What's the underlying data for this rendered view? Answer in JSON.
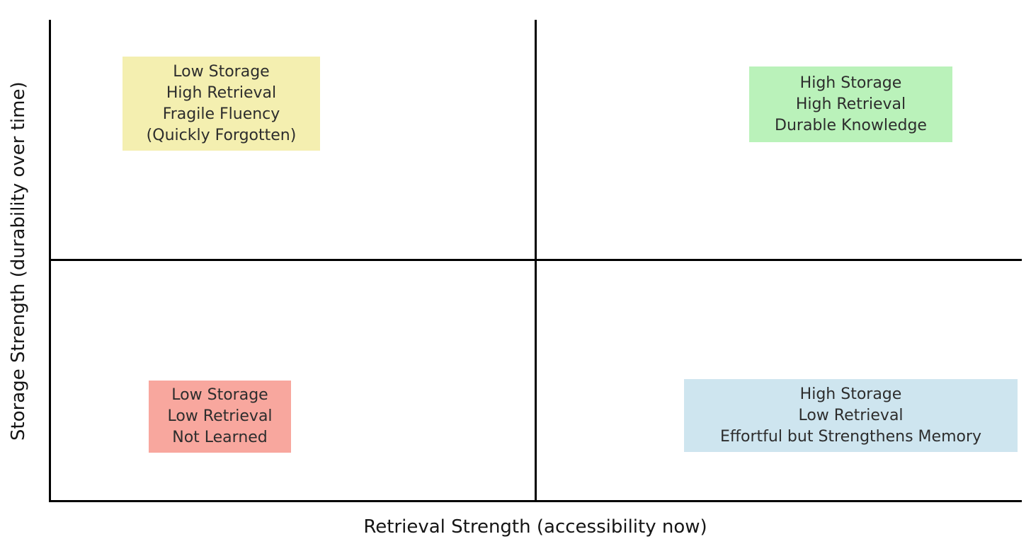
{
  "figure": {
    "background": "#ffffff",
    "line_color": "#000000",
    "label_color": "#151515",
    "box_text_color": "#2d2d2d"
  },
  "axes": {
    "x_label": "Retrieval Strength (accessibility now)",
    "y_label": "Storage Strength (durability over time)"
  },
  "quadrants": {
    "top_left": {
      "position": "top-left",
      "bg": "#F4EFB0",
      "lines": [
        "Low Storage",
        "High Retrieval",
        "Fragile Fluency",
        "(Quickly Forgotten)"
      ]
    },
    "top_right": {
      "position": "top-right",
      "bg": "#BAF2BA",
      "lines": [
        "High Storage",
        "High Retrieval",
        "Durable Knowledge"
      ]
    },
    "bottom_left": {
      "position": "bottom-left",
      "bg": "#F8A79E",
      "lines": [
        "Low Storage",
        "Low Retrieval",
        "Not Learned"
      ]
    },
    "bottom_right": {
      "position": "bottom-right",
      "bg": "#CEE5EF",
      "lines": [
        "High Storage",
        "Low Retrieval",
        "Effortful but Strengthens Memory"
      ]
    }
  },
  "chart_data": {
    "type": "quadrant",
    "xlabel": "Retrieval Strength (accessibility now)",
    "ylabel": "Storage Strength (durability over time)",
    "grid": false,
    "quadrant_labels": {
      "top_left": "Low Storage / High Retrieval / Fragile Fluency / (Quickly Forgotten)",
      "top_right": "High Storage / High Retrieval / Durable Knowledge",
      "bottom_left": "Low Storage / Low Retrieval / Not Learned",
      "bottom_right": "High Storage / Low Retrieval / Effortful but Strengthens Memory"
    }
  }
}
